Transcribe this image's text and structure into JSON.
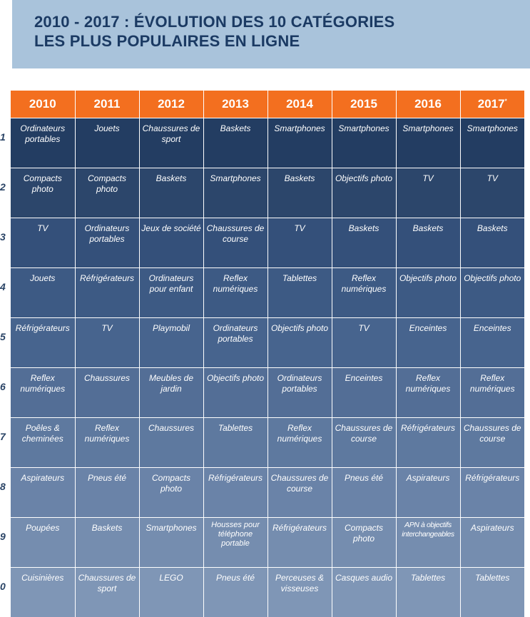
{
  "title": {
    "line1": "2010 - 2017 : ÉVOLUTION DES 10 CATÉGORIES",
    "line2": "LES PLUS POPULAIRES EN LIGNE"
  },
  "table": {
    "years": [
      "2010",
      "2011",
      "2012",
      "2013",
      "2014",
      "2015",
      "2016",
      "2017"
    ],
    "last_year_marker": "*",
    "ranks": [
      "1",
      "2",
      "3",
      "4",
      "5",
      "6",
      "7",
      "8",
      "9",
      "0"
    ],
    "rows": [
      [
        "Ordinateurs portables",
        "Jouets",
        "Chaussures de sport",
        "Baskets",
        "Smartphones",
        "Smartphones",
        "Smartphones",
        "Smartphones"
      ],
      [
        "Compacts photo",
        "Compacts photo",
        "Baskets",
        "Smartphones",
        "Baskets",
        "Objectifs photo",
        "TV",
        "TV"
      ],
      [
        "TV",
        "Ordinateurs portables",
        "Jeux de société",
        "Chaussures de course",
        "TV",
        "Baskets",
        "Baskets",
        "Baskets"
      ],
      [
        "Jouets",
        "Réfrigérateurs",
        "Ordinateurs pour enfant",
        "Reflex numériques",
        "Tablettes",
        "Reflex numériques",
        "Objectifs photo",
        "Objectifs photo"
      ],
      [
        "Réfrigérateurs",
        "TV",
        "Playmobil",
        "Ordinateurs portables",
        "Objectifs photo",
        "TV",
        "Enceintes",
        "Enceintes"
      ],
      [
        "Reflex numériques",
        "Chaussures",
        "Meubles de jardin",
        "Objectifs photo",
        "Ordinateurs portables",
        "Enceintes",
        "Reflex numériques",
        "Reflex numériques"
      ],
      [
        "Poêles & cheminées",
        "Reflex numériques",
        "Chaussures",
        "Tablettes",
        "Reflex numériques",
        "Chaussures de course",
        "Réfrigérateurs",
        "Chaussures de course"
      ],
      [
        "Aspirateurs",
        "Pneus été",
        "Compacts photo",
        "Réfrigérateurs",
        "Chaussures de course",
        "Pneus été",
        "Aspirateurs",
        "Réfrigérateurs"
      ],
      [
        "Poupées",
        "Baskets",
        "Smartphones",
        "Housses pour téléphone portable",
        "Réfrigérateurs",
        "Compacts photo",
        "APN à objectifs interchangeables",
        "Aspirateurs"
      ],
      [
        "Cuisinières",
        "Chaussures de sport",
        "LEGO",
        "Pneus été",
        "Perceuses & visseuses",
        "Casques audio",
        "Tablettes",
        "Tablettes"
      ]
    ]
  }
}
